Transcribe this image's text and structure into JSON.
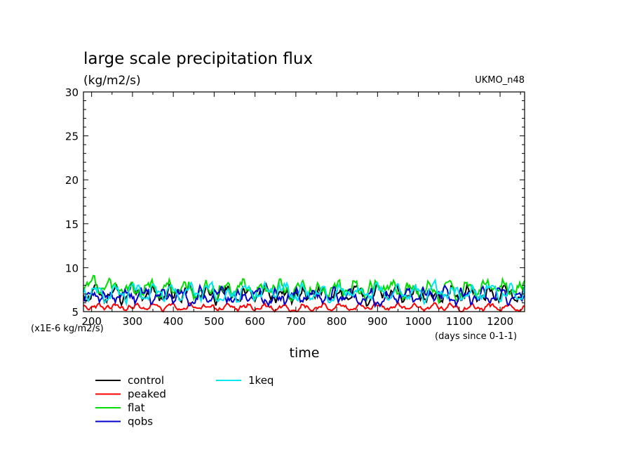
{
  "chart_data": {
    "type": "line",
    "title": "large scale precipitation flux",
    "subtitle": "(kg/m2/s)",
    "source_label": "UKMO_n48",
    "xlabel": "time",
    "x_unit_label": "(days since 0-1-1)",
    "y_unit_label": "(x1E-6 kg/m2/s)",
    "xlim": [
      180,
      1260
    ],
    "ylim": [
      5,
      30
    ],
    "x_ticks": [
      200,
      300,
      400,
      500,
      600,
      700,
      800,
      900,
      1000,
      1100,
      1200
    ],
    "y_ticks": [
      5,
      10,
      15,
      20,
      25,
      30
    ],
    "grid": false,
    "legend_position": "below-left",
    "series": [
      {
        "name": "control",
        "color": "#000000",
        "mean": 7.0,
        "amp": 1.2,
        "seed": 11
      },
      {
        "name": "peaked",
        "color": "#ff0000",
        "mean": 5.5,
        "amp": 0.5,
        "seed": 23
      },
      {
        "name": "flat",
        "color": "#00dd00",
        "mean": 7.6,
        "amp": 1.3,
        "seed": 37
      },
      {
        "name": "qobs",
        "color": "#0000cc",
        "mean": 6.7,
        "amp": 1.1,
        "seed": 51
      },
      {
        "name": "1keq",
        "color": "#00e5ee",
        "mean": 7.2,
        "amp": 1.1,
        "seed": 67
      }
    ]
  }
}
